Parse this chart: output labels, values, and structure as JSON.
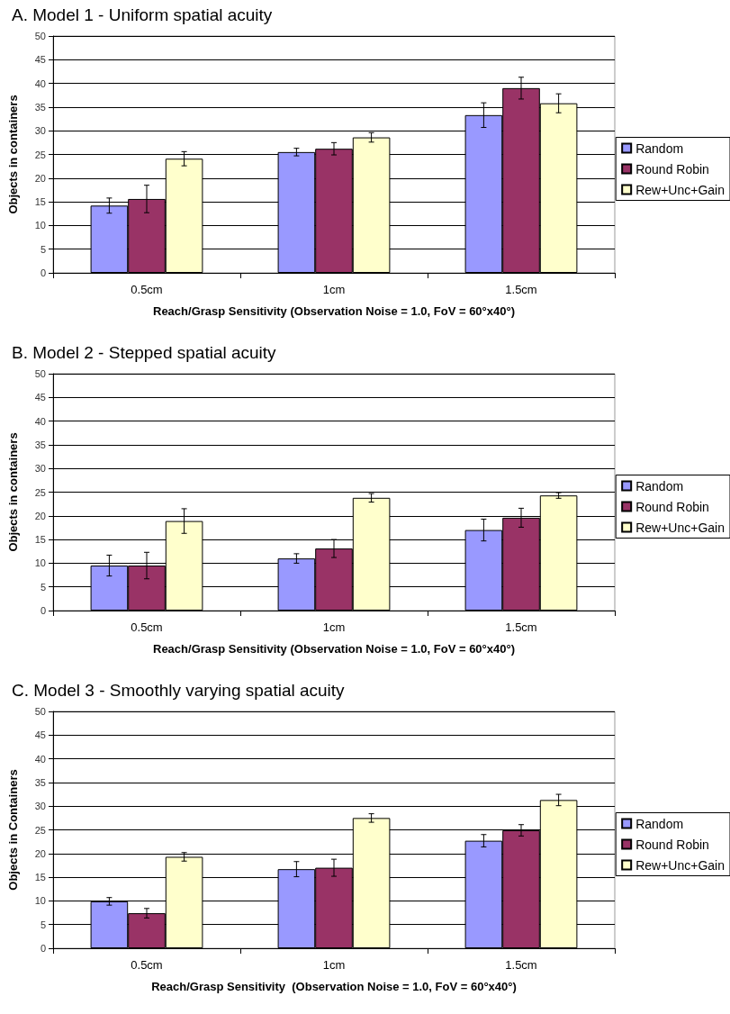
{
  "chart_data": [
    {
      "type": "bar",
      "title": "A. Model 1 - Uniform spatial acuity",
      "xlabel": "Reach/Grasp Sensitivity (Observation Noise = 1.0, FoV = 60°x40°)",
      "ylabel": "Objects in containers",
      "categories": [
        "0.5cm",
        "1cm",
        "1.5cm"
      ],
      "ylim": [
        0,
        50
      ],
      "yticks": [
        0,
        5,
        10,
        15,
        20,
        25,
        30,
        35,
        40,
        45,
        50
      ],
      "grid": "y",
      "legend": "right",
      "series": [
        {
          "name": "Random",
          "color": "#9999ff",
          "values": [
            14.2,
            25.5,
            33.3
          ],
          "errors": [
            1.6,
            0.8,
            2.6
          ]
        },
        {
          "name": "Round Robin",
          "color": "#993366",
          "values": [
            15.6,
            26.2,
            39
          ],
          "errors": [
            2.9,
            1.3,
            2.3
          ]
        },
        {
          "name": "Rew+Unc+Gain",
          "color": "#ffffcc",
          "values": [
            24.1,
            28.6,
            35.8
          ],
          "errors": [
            1.5,
            1,
            2
          ]
        }
      ]
    },
    {
      "type": "bar",
      "title": "B. Model 2 - Stepped spatial acuity",
      "xlabel": "Reach/Grasp Sensitivity (Observation Noise = 1.0, FoV = 60°x40°)",
      "ylabel": "Objects in containers",
      "categories": [
        "0.5cm",
        "1cm",
        "1.5cm"
      ],
      "ylim": [
        0,
        50
      ],
      "yticks": [
        0,
        5,
        10,
        15,
        20,
        25,
        30,
        35,
        40,
        45,
        50
      ],
      "grid": "y",
      "legend": "right",
      "series": [
        {
          "name": "Random",
          "color": "#9999ff",
          "values": [
            9.5,
            11,
            17
          ],
          "errors": [
            2.2,
            1,
            2.3
          ]
        },
        {
          "name": "Round Robin",
          "color": "#993366",
          "values": [
            9.5,
            13.1,
            19.6
          ],
          "errors": [
            2.8,
            1.9,
            2
          ]
        },
        {
          "name": "Rew+Unc+Gain",
          "color": "#ffffcc",
          "values": [
            18.9,
            23.8,
            24.3
          ],
          "errors": [
            2.6,
            0.9,
            0.6
          ]
        }
      ]
    },
    {
      "type": "bar",
      "title": "C. Model 3 - Smoothly varying spatial acuity",
      "xlabel": "Reach/Grasp Sensitivity  (Observation Noise = 1.0, FoV = 60°x40°)",
      "ylabel": "Objects in Containers",
      "categories": [
        "0.5cm",
        "1cm",
        "1.5cm"
      ],
      "ylim": [
        0,
        50
      ],
      "yticks": [
        0,
        5,
        10,
        15,
        20,
        25,
        30,
        35,
        40,
        45,
        50
      ],
      "grid": "y",
      "legend": "right",
      "series": [
        {
          "name": "Random",
          "color": "#9999ff",
          "values": [
            9.9,
            16.7,
            22.7
          ],
          "errors": [
            0.8,
            1.6,
            1.3
          ]
        },
        {
          "name": "Round Robin",
          "color": "#993366",
          "values": [
            7.4,
            17,
            24.9
          ],
          "errors": [
            1,
            1.8,
            1.2
          ]
        },
        {
          "name": "Rew+Unc+Gain",
          "color": "#ffffcc",
          "values": [
            19.3,
            27.5,
            31.3
          ],
          "errors": [
            0.9,
            0.9,
            1.2
          ]
        }
      ]
    }
  ]
}
